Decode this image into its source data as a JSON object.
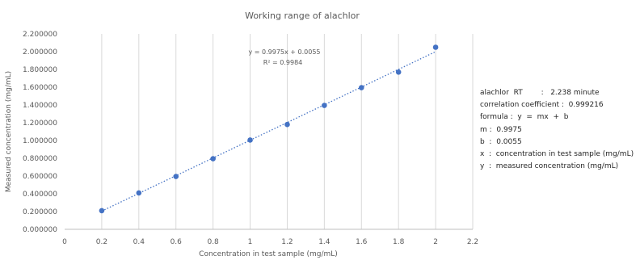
{
  "chart_data": {
    "type": "scatter",
    "title": "Working range of alachlor",
    "xlabel": "Concentration in test sample (mg/mL)",
    "ylabel": "Measured concentration (mg/mL)",
    "xlim": [
      0,
      2.2
    ],
    "ylim": [
      0,
      2.2
    ],
    "x_ticks": [
      "0",
      "0.2",
      "0.4",
      "0.6",
      "0.8",
      "1",
      "1.2",
      "1.4",
      "1.6",
      "1.8",
      "2",
      "2.2"
    ],
    "y_ticks": [
      "0.000000",
      "0.200000",
      "0.400000",
      "0.600000",
      "0.800000",
      "1.000000",
      "1.200000",
      "1.400000",
      "1.600000",
      "1.800000",
      "2.000000",
      "2.200000"
    ],
    "grid": "vertical",
    "series": [
      {
        "x": [
          0.2,
          0.4,
          0.6,
          0.8,
          1.0,
          1.2,
          1.4,
          1.6,
          1.8,
          2.0
        ],
        "y": [
          0.21,
          0.41,
          0.595,
          0.795,
          1.005,
          1.18,
          1.395,
          1.595,
          1.77,
          2.05
        ],
        "color": "#4472C4",
        "trendline": {
          "type": "linear",
          "style": "dotted",
          "slope": 0.9975,
          "intercept": 0.0055
        }
      }
    ],
    "annotations": {
      "equation": "y = 0.9975x + 0.0055",
      "r_squared": "R² = 0.9984"
    }
  },
  "info_lines": [
    "alachlor  RT        :   2.238 minute",
    "correlation coefficient :  0.999216",
    "formula :  y  =  mx  +  b",
    "m :  0.9975",
    "b  :  0.0055",
    "x  :  concentration in test sample (mg/mL)",
    "y  :  measured concentration (mg/mL)"
  ]
}
